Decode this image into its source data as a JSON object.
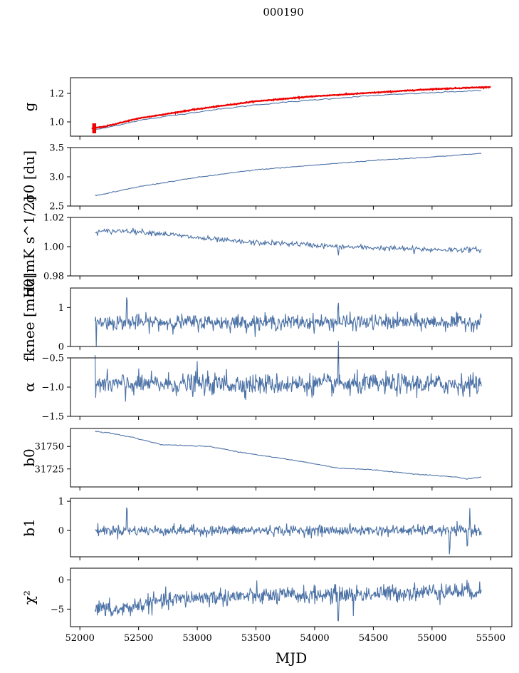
{
  "figure": {
    "title": "000190",
    "xlabel": "MJD"
  },
  "colors": {
    "series": "#4c72a6",
    "overlay": "#ee0000",
    "axes": "#000000"
  },
  "chart_data": [
    {
      "type": "line",
      "ylabel": "g",
      "xlim": [
        51920,
        55680
      ],
      "ylim": [
        0.9,
        1.31
      ],
      "yticks": [
        1.0,
        1.2
      ],
      "ytick_labels": [
        "1.0",
        "1.2"
      ],
      "series": [
        {
          "values_x": [
            52130,
            52200,
            52500,
            53000,
            53500,
            54000,
            54500,
            55000,
            55420
          ],
          "values_y": [
            0.945,
            0.955,
            1.01,
            1.07,
            1.12,
            1.155,
            1.185,
            1.205,
            1.22
          ]
        },
        {
          "color_key": "overlay",
          "values_x": [
            52100,
            52200,
            52500,
            53000,
            53500,
            54000,
            54500,
            55000,
            55500
          ],
          "values_y": [
            0.955,
            0.965,
            1.025,
            1.09,
            1.145,
            1.18,
            1.205,
            1.23,
            1.245
          ]
        }
      ]
    },
    {
      "type": "line",
      "ylabel": "σ0 [du]",
      "xlim": [
        51920,
        55680
      ],
      "ylim": [
        2.5,
        3.5
      ],
      "yticks": [
        2.5,
        3.0,
        3.5
      ],
      "ytick_labels": [
        "2.5",
        "3.0",
        "3.5"
      ],
      "series": [
        {
          "values_x": [
            52130,
            52200,
            52500,
            53000,
            53500,
            54000,
            54500,
            55000,
            55420
          ],
          "values_y": [
            2.68,
            2.7,
            2.83,
            2.99,
            3.12,
            3.2,
            3.28,
            3.34,
            3.4
          ]
        }
      ]
    },
    {
      "type": "line",
      "ylabel": "σ0[mK s^1/2]",
      "xlim": [
        51920,
        55680
      ],
      "ylim": [
        0.98,
        1.02
      ],
      "yticks": [
        0.98,
        1.0,
        1.02
      ],
      "ytick_labels": [
        "0.98",
        "1.00",
        "1.02"
      ],
      "series": [
        {
          "values_x": [
            52130,
            52400,
            52700,
            53000,
            53400,
            53800,
            54200,
            54600,
            55000,
            55420
          ],
          "values_y": [
            1.01,
            1.011,
            1.009,
            1.006,
            1.003,
            1.002,
            1.0,
            0.999,
            0.998,
            0.998
          ]
        }
      ]
    },
    {
      "type": "line",
      "ylabel": "fknee [mHz]",
      "xlim": [
        51920,
        55680
      ],
      "ylim": [
        0.0,
        1.5
      ],
      "yticks": [
        0,
        1
      ],
      "ytick_labels": [
        "0",
        "1"
      ],
      "series": [
        {
          "values_x": [
            52130,
            55420
          ],
          "values_y": [
            0.62,
            0.62
          ]
        }
      ]
    },
    {
      "type": "line",
      "ylabel": "α",
      "xlim": [
        51920,
        55680
      ],
      "ylim": [
        -1.5,
        -0.5
      ],
      "yticks": [
        -1.5,
        -1.0,
        -0.5
      ],
      "ytick_labels": [
        "−1.5",
        "−1.0",
        "−0.5"
      ],
      "series": [
        {
          "values_x": [
            52130,
            55420
          ],
          "values_y": [
            -0.95,
            -0.95
          ]
        }
      ]
    },
    {
      "type": "line",
      "ylabel": "b0",
      "xlim": [
        51920,
        55680
      ],
      "ylim": [
        31705,
        31770
      ],
      "yticks": [
        31725,
        31750
      ],
      "ytick_labels": [
        "31725",
        "31750"
      ],
      "series": [
        {
          "values_x": [
            52130,
            52250,
            52450,
            52700,
            52900,
            53100,
            53400,
            53700,
            53900,
            54200,
            54500,
            54800,
            55000,
            55200,
            55300,
            55420
          ],
          "values_y": [
            31767,
            31765,
            31760,
            31752,
            31751,
            31750,
            31743,
            31737,
            31733,
            31726,
            31724,
            31720,
            31718,
            31716,
            31714,
            31716
          ]
        }
      ]
    },
    {
      "type": "line",
      "ylabel": "b1",
      "xlim": [
        51920,
        55680
      ],
      "ylim": [
        -0.9,
        1.1
      ],
      "yticks": [
        0,
        1
      ],
      "ytick_labels": [
        "0",
        "1"
      ],
      "series": [
        {
          "values_x": [
            52130,
            55420
          ],
          "values_y": [
            0.0,
            0.0
          ]
        }
      ]
    },
    {
      "type": "line",
      "ylabel": "χ²",
      "xlim": [
        51920,
        55680
      ],
      "ylim": [
        -8.0,
        2.0
      ],
      "yticks": [
        -5,
        0
      ],
      "ytick_labels": [
        "−5",
        "0"
      ],
      "series": [
        {
          "values_x": [
            52130,
            52300,
            52600,
            53000,
            53500,
            54000,
            54500,
            55000,
            55420
          ],
          "values_y": [
            -4.8,
            -5.3,
            -3.9,
            -3.0,
            -2.8,
            -2.6,
            -2.4,
            -2.0,
            -1.9
          ]
        }
      ]
    }
  ],
  "xaxis": {
    "ticks": [
      52000,
      52500,
      53000,
      53500,
      54000,
      54500,
      55000,
      55500
    ],
    "tick_labels": [
      "52000",
      "52500",
      "53000",
      "53500",
      "54000",
      "54500",
      "55000",
      "55500"
    ]
  }
}
